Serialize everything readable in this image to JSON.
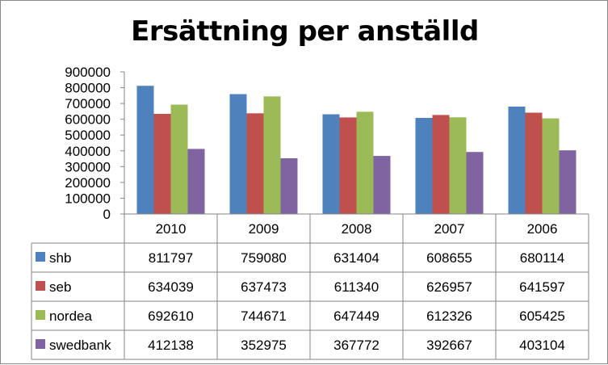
{
  "chart_data": {
    "type": "bar",
    "title": "Ersättning per anställd",
    "categories": [
      "2010",
      "2009",
      "2008",
      "2007",
      "2006"
    ],
    "series": [
      {
        "name": "shb",
        "color": "#4F81BD",
        "values": [
          811797,
          759080,
          631404,
          608655,
          680114
        ]
      },
      {
        "name": "seb",
        "color": "#C0504D",
        "values": [
          634039,
          637473,
          611340,
          626957,
          641597
        ]
      },
      {
        "name": "nordea",
        "color": "#9BBB59",
        "values": [
          692610,
          744671,
          647449,
          612326,
          605425
        ]
      },
      {
        "name": "swedbank",
        "color": "#8064A2",
        "values": [
          412138,
          352975,
          367772,
          392667,
          403104
        ]
      }
    ],
    "yticks": [
      "0",
      "100000",
      "200000",
      "300000",
      "400000",
      "500000",
      "600000",
      "700000",
      "800000",
      "900000"
    ],
    "ylim": [
      0,
      900000
    ],
    "grid": false,
    "legend": "data-table-left",
    "data_table": true
  }
}
